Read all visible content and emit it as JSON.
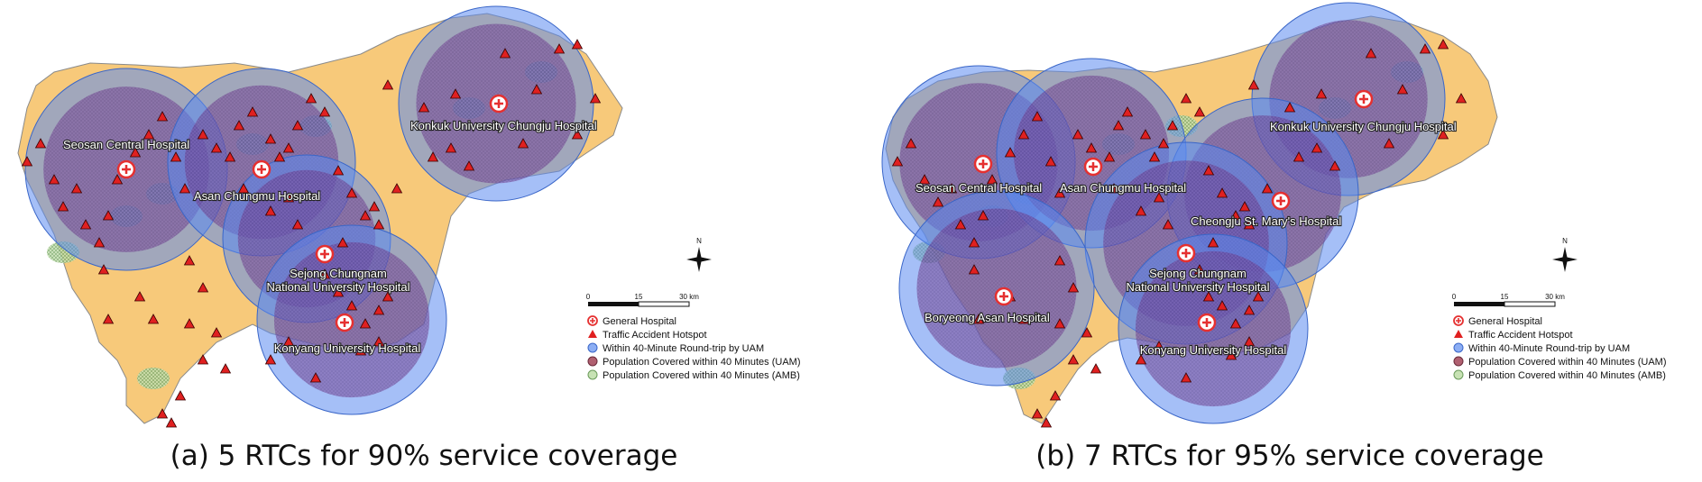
{
  "colors": {
    "land": "#f7c97a",
    "land_border": "#8a8a8a",
    "uam_circle": "#5b8bf0",
    "uam_pop": "#7a4a9a",
    "amb_pop": "#c7e2b4",
    "hotspot": "#e02020",
    "hospital": "#e53030"
  },
  "legend": {
    "general_hospital": "General Hospital",
    "traffic_hotspot": "Traffic Accident Hotspot",
    "within_uam": "Within 40-Minute Round-trip by UAM",
    "pop_uam": "Population Covered within 40 Minutes (UAM)",
    "pop_amb": "Population Covered within 40 Minutes (AMB)"
  },
  "scale_bar": {
    "ticks": [
      "0",
      "15",
      "30 km"
    ]
  },
  "north_label": "N",
  "panels": [
    {
      "caption": "(a) 5 RTCs for 90% service coverage",
      "hospitals": [
        {
          "name": "Seosan Central Hospital"
        },
        {
          "name": "Asan Chungmu Hospital"
        },
        {
          "name": "Konkuk University Chungju Hospital"
        },
        {
          "name": "Sejong Chungnam\nNational University Hospital"
        },
        {
          "name": "Konyang University Hospital"
        }
      ]
    },
    {
      "caption": "(b) 7 RTCs for 95% service coverage",
      "hospitals": [
        {
          "name": "Seosan Central Hospital"
        },
        {
          "name": "Asan Chungmu Hospital"
        },
        {
          "name": "Konkuk University Chungju Hospital"
        },
        {
          "name": "Cheongju St. Mary's Hospital"
        },
        {
          "name": "Sejong Chungnam\nNational University Hospital"
        },
        {
          "name": "Boryeong Asan Hospital"
        },
        {
          "name": "Konyang University Hospital"
        }
      ]
    }
  ]
}
